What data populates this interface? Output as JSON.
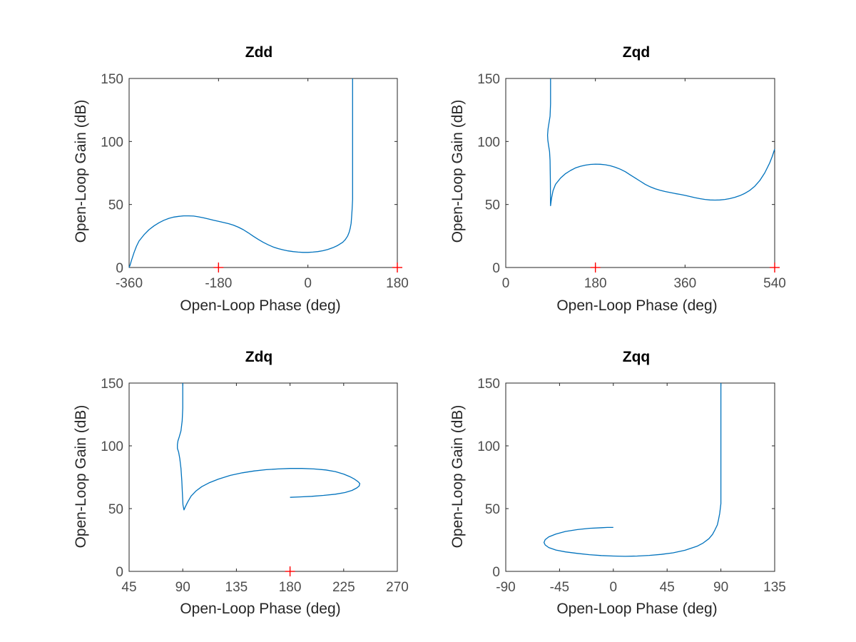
{
  "figure": {
    "colors": {
      "curve": "#0072bd",
      "critical": "#ff0000",
      "axes": "#262626",
      "ticks": "#4d4d4d"
    }
  },
  "chart_data": [
    {
      "type": "line",
      "title": "Zdd",
      "xlabel": "Open-Loop Phase (deg)",
      "ylabel": "Open-Loop Gain (dB)",
      "xlim": [
        -360,
        180
      ],
      "ylim": [
        0,
        150
      ],
      "xticks": [
        "-360",
        "-180",
        "0",
        "180"
      ],
      "yticks": [
        "0",
        "50",
        "100",
        "150"
      ],
      "grid": false,
      "critical_points": [
        [
          -180,
          0
        ],
        [
          180,
          0
        ]
      ],
      "series": [
        {
          "x": [
            -360,
            -358,
            -355,
            -350,
            -345,
            -340,
            -330,
            -320,
            -310,
            -300,
            -290,
            -280,
            -270,
            -260,
            -250,
            -240,
            -230,
            -220,
            -210,
            -200,
            -190,
            -180,
            -170,
            -160,
            -150,
            -140,
            -130,
            -120,
            -110,
            -100,
            -90,
            -80,
            -70,
            -60,
            -50,
            -40,
            -30,
            -20,
            -10,
            0,
            10,
            20,
            30,
            40,
            50,
            60,
            70,
            75,
            80,
            83,
            85,
            87,
            88,
            89,
            90,
            90,
            90,
            90
          ],
          "y": [
            0,
            2,
            6,
            12,
            17,
            21,
            26,
            30,
            33,
            35.5,
            37.5,
            39,
            40,
            40.6,
            41,
            41,
            40.8,
            40.2,
            39.4,
            38.5,
            37.5,
            36.6,
            35.7,
            34.8,
            33.6,
            32,
            30,
            27.5,
            24.8,
            22.3,
            20,
            18,
            16.3,
            15,
            14,
            13.2,
            12.6,
            12.2,
            12,
            12,
            12.2,
            12.6,
            13.3,
            14.3,
            15.7,
            17.5,
            20,
            22,
            25,
            28,
            31,
            35,
            40,
            46,
            54,
            80,
            120,
            150
          ]
        }
      ]
    },
    {
      "type": "line",
      "title": "Zqd",
      "xlabel": "Open-Loop Phase (deg)",
      "ylabel": "Open-Loop Gain (dB)",
      "xlim": [
        0,
        540
      ],
      "ylim": [
        0,
        150
      ],
      "xticks": [
        "0",
        "180",
        "360",
        "540"
      ],
      "yticks": [
        "0",
        "50",
        "100",
        "150"
      ],
      "grid": false,
      "critical_points": [
        [
          180,
          0
        ],
        [
          540,
          0
        ]
      ],
      "series": [
        {
          "x": [
            90,
            90,
            89,
            87,
            85,
            84,
            84.5,
            86,
            88,
            89,
            89.5,
            90,
            92,
            95,
            100,
            110,
            120,
            130,
            140,
            150,
            160,
            170,
            180,
            190,
            200,
            210,
            220,
            230,
            240,
            250,
            260,
            270,
            280,
            290,
            300,
            310,
            320,
            330,
            340,
            350,
            360,
            370,
            380,
            390,
            400,
            410,
            420,
            430,
            440,
            450,
            460,
            470,
            480,
            490,
            500,
            510,
            520,
            530,
            535,
            540
          ],
          "y": [
            150,
            130,
            120,
            115,
            110,
            105,
            101,
            97,
            92,
            85,
            70,
            49,
            55,
            61,
            66,
            71,
            74.5,
            77,
            79,
            80.3,
            81.2,
            81.8,
            82,
            81.9,
            81.5,
            80.7,
            79.5,
            78,
            76,
            73.5,
            71,
            68.5,
            66,
            64,
            62.5,
            61.3,
            60.3,
            59.5,
            58.7,
            58,
            57.2,
            56.3,
            55.4,
            54.6,
            54,
            53.6,
            53.5,
            53.6,
            54,
            54.7,
            55.7,
            57,
            58.8,
            61.2,
            64.5,
            69,
            75,
            83,
            88,
            94
          ]
        }
      ]
    },
    {
      "type": "line",
      "title": "Zdq",
      "xlabel": "Open-Loop Phase (deg)",
      "ylabel": "Open-Loop Gain (dB)",
      "xlim": [
        45,
        270
      ],
      "ylim": [
        0,
        150
      ],
      "xticks": [
        "45",
        "90",
        "135",
        "180",
        "225",
        "270"
      ],
      "yticks": [
        "0",
        "50",
        "100",
        "150"
      ],
      "grid": false,
      "critical_points": [
        [
          180,
          0
        ]
      ],
      "series": [
        {
          "x": [
            90,
            90,
            89.5,
            88.5,
            87,
            86,
            85.5,
            85.5,
            86.5,
            87.5,
            88.5,
            89.2,
            89.7,
            90.2,
            91,
            92,
            94,
            97,
            101,
            106,
            112,
            120,
            130,
            140,
            150,
            160,
            170,
            180,
            190,
            200,
            210,
            218,
            225,
            230,
            234,
            237,
            238.5,
            238,
            236,
            232,
            226,
            218,
            208,
            198,
            188,
            180
          ],
          "y": [
            150,
            130,
            120,
            112,
            107,
            104,
            101,
            98,
            95,
            90,
            82,
            72,
            62,
            53,
            49,
            51,
            55,
            60,
            64,
            67.5,
            70.5,
            73.5,
            76.5,
            78.5,
            80,
            81,
            81.6,
            82,
            82,
            81.6,
            80.8,
            79.5,
            77.5,
            75.5,
            73.5,
            71.5,
            70,
            68,
            66.5,
            64.5,
            62.8,
            61.5,
            60.5,
            59.8,
            59.3,
            59
          ]
        }
      ]
    },
    {
      "type": "line",
      "title": "Zqq",
      "xlabel": "Open-Loop Phase (deg)",
      "ylabel": "Open-Loop Gain (dB)",
      "xlim": [
        -90,
        135
      ],
      "ylim": [
        0,
        150
      ],
      "xticks": [
        "-90",
        "-45",
        "0",
        "45",
        "90",
        "135"
      ],
      "yticks": [
        "0",
        "50",
        "100",
        "150"
      ],
      "grid": false,
      "critical_points": [],
      "series": [
        {
          "x": [
            0,
            -5,
            -10,
            -20,
            -30,
            -40,
            -48,
            -54,
            -57,
            -58,
            -57,
            -54,
            -48,
            -40,
            -30,
            -20,
            -10,
            0,
            10,
            20,
            30,
            40,
            50,
            60,
            70,
            75,
            80,
            83,
            85,
            87,
            88,
            89,
            90,
            90,
            90,
            90
          ],
          "y": [
            35,
            35,
            34.8,
            34.3,
            33.3,
            31.8,
            29.8,
            27.5,
            25.3,
            23,
            21,
            19,
            17,
            15.5,
            14.3,
            13.3,
            12.6,
            12.2,
            12,
            12.2,
            12.7,
            13.5,
            14.8,
            16.8,
            20,
            22.5,
            26,
            29.5,
            33,
            37,
            41,
            46,
            54,
            80,
            120,
            150
          ]
        }
      ]
    }
  ]
}
